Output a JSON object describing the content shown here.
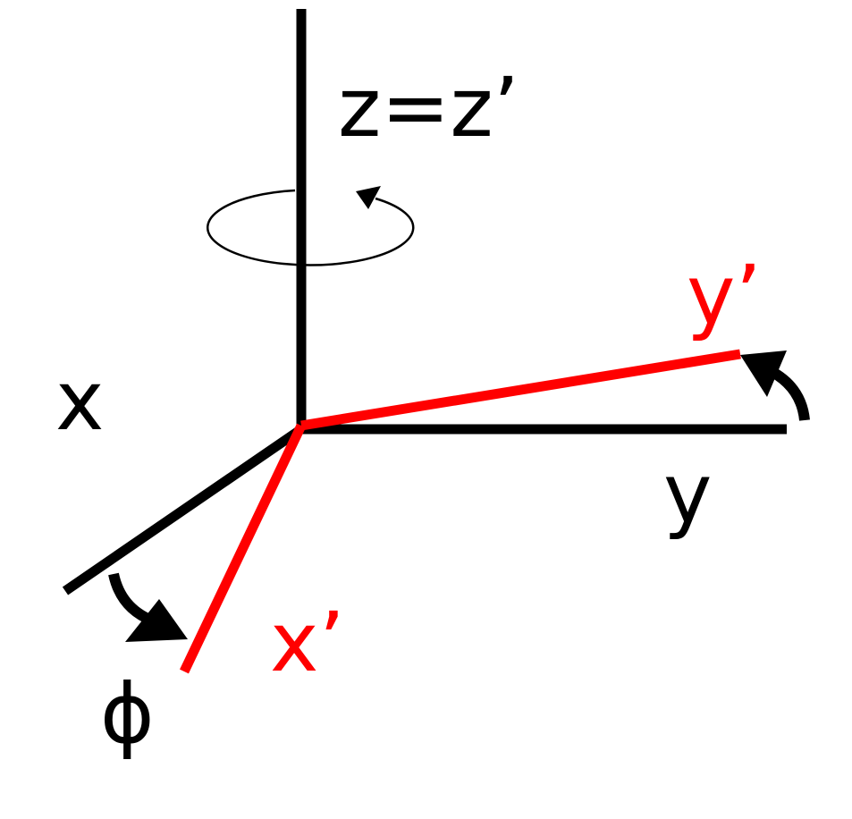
{
  "labels": {
    "z_axis": "z=z’",
    "x_axis": "x",
    "y_axis": "y",
    "x_prime": "x’",
    "y_prime": "y’",
    "angle": "ϕ"
  },
  "colors": {
    "original_axes": "#000000",
    "rotated_axes": "#ff0000"
  }
}
